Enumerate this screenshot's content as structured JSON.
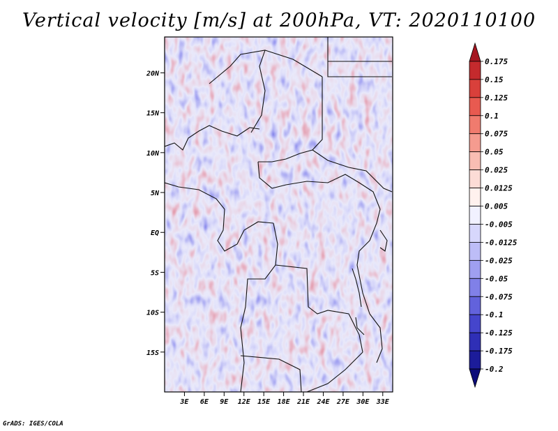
{
  "title": "Vertical velocity [m/s] at 200hPa, VT: 2020110100",
  "credit": "GrADS: IGES/COLA",
  "map": {
    "lat_labels": [
      "20N",
      "15N",
      "10N",
      "5N",
      "EQ",
      "5S",
      "10S",
      "15S"
    ],
    "lon_labels": [
      "3E",
      "6E",
      "9E",
      "12E",
      "15E",
      "18E",
      "21E",
      "24E",
      "27E",
      "30E",
      "33E"
    ],
    "lat_range": [
      -20,
      24.5
    ],
    "lon_range": [
      0,
      34.5
    ]
  },
  "colorbar": {
    "labels": [
      "0.175",
      "0.15",
      "0.125",
      "0.1",
      "0.075",
      "0.05",
      "0.025",
      "0.0125",
      "0.005",
      "-0.005",
      "-0.0125",
      "-0.025",
      "-0.05",
      "-0.075",
      "-0.1",
      "-0.125",
      "-0.175",
      "-0.2"
    ],
    "colors": [
      "#a51620",
      "#c42a2d",
      "#d9403b",
      "#e85a50",
      "#f07b6e",
      "#f59b8f",
      "#f9bdb3",
      "#fcdcd6",
      "#fff1ee",
      "#f1f1ff",
      "#d7d7fc",
      "#bdbdf7",
      "#9f9ff0",
      "#8080e8",
      "#6262dc",
      "#4545cc",
      "#2f2fb6",
      "#1c1c9a",
      "#0c0c7a"
    ]
  }
}
